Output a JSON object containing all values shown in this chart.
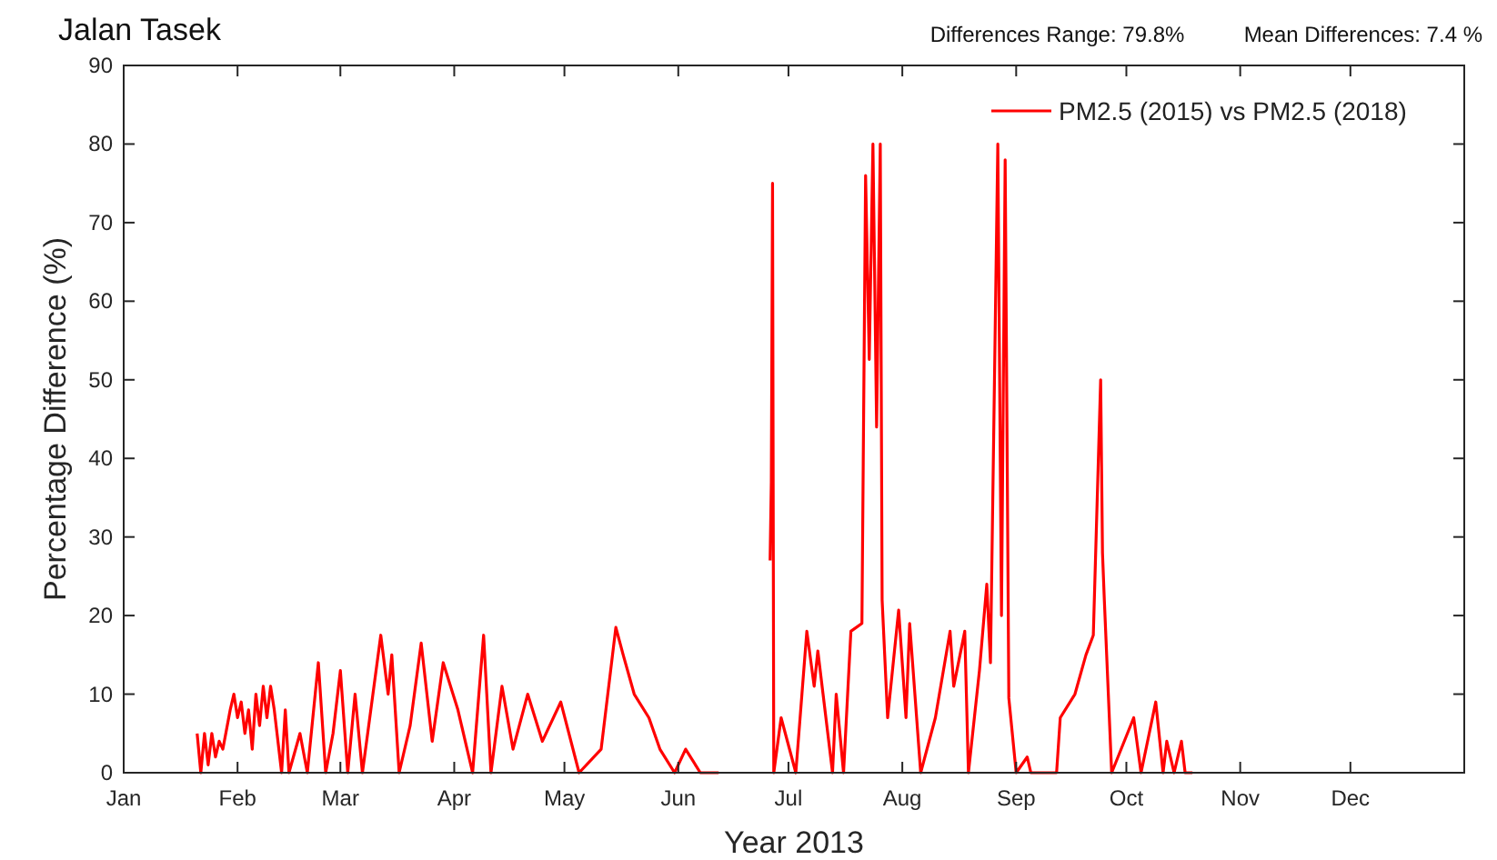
{
  "chart_data": {
    "type": "line",
    "title": "Jalan Tasek",
    "xlabel": "Year 2013",
    "ylabel": "Percentage Difference (%)",
    "annotations": [
      "Differences Range: 79.8%",
      "Mean Differences: 7.4 %"
    ],
    "x": [
      "2013-01-21",
      "2013-01-22",
      "2013-01-23",
      "2013-01-24",
      "2013-01-25",
      "2013-01-26",
      "2013-01-27",
      "2013-01-28",
      "2013-01-30",
      "2013-01-31",
      "2013-02-01",
      "2013-02-02",
      "2013-02-03",
      "2013-02-04",
      "2013-02-05",
      "2013-02-06",
      "2013-02-07",
      "2013-02-08",
      "2013-02-09",
      "2013-02-10",
      "2013-02-11",
      "2013-02-13",
      "2013-02-14",
      "2013-02-15",
      "2013-02-18",
      "2013-02-20",
      "2013-02-23",
      "2013-02-25",
      "2013-02-27",
      "2013-03-01",
      "2013-03-03",
      "2013-03-05",
      "2013-03-07",
      "2013-03-12",
      "2013-03-14",
      "2013-03-15",
      "2013-03-17",
      "2013-03-20",
      "2013-03-23",
      "2013-03-26",
      "2013-03-29",
      "2013-04-02",
      "2013-04-06",
      "2013-04-09",
      "2013-04-11",
      "2013-04-14",
      "2013-04-17",
      "2013-04-21",
      "2013-04-25",
      "2013-04-30",
      "2013-05-05",
      "2013-05-11",
      "2013-05-15",
      "2013-05-17",
      "2013-05-20",
      "2013-05-24",
      "2013-05-27",
      "2013-05-31",
      "2013-06-03",
      "2013-06-07",
      "2013-06-12",
      "2013-06-20",
      "2013-06-26",
      "2013-06-26T08:00",
      "2013-06-26T16:00",
      "2013-06-27",
      "2013-06-29",
      "2013-07-03",
      "2013-07-06",
      "2013-07-08",
      "2013-07-09",
      "2013-07-13",
      "2013-07-14",
      "2013-07-16",
      "2013-07-18",
      "2013-07-21",
      "2013-07-22",
      "2013-07-23",
      "2013-07-24",
      "2013-07-25",
      "2013-07-26",
      "2013-07-26T12:00",
      "2013-07-28",
      "2013-07-31",
      "2013-08-02",
      "2013-08-03",
      "2013-08-06",
      "2013-08-10",
      "2013-08-14",
      "2013-08-15",
      "2013-08-18",
      "2013-08-19",
      "2013-08-22",
      "2013-08-24",
      "2013-08-25",
      "2013-08-27",
      "2013-08-28",
      "2013-08-29",
      "2013-08-30",
      "2013-09-01",
      "2013-09-04",
      "2013-09-05",
      "2013-09-12",
      "2013-09-13",
      "2013-09-17",
      "2013-09-20",
      "2013-09-22",
      "2013-09-24",
      "2013-09-24T12:00",
      "2013-09-25",
      "2013-09-27",
      "2013-10-03",
      "2013-10-05",
      "2013-10-09",
      "2013-10-11",
      "2013-10-12",
      "2013-10-14",
      "2013-10-16",
      "2013-10-17",
      "2013-10-19"
    ],
    "series": [
      {
        "name": "PM2.5 (2015) vs PM2.5 (2018)",
        "color": "#ff0000",
        "values": [
          5,
          0,
          5,
          1,
          5,
          2,
          4,
          3,
          8,
          10,
          7,
          9,
          5,
          8,
          3,
          10,
          6,
          11,
          7,
          11,
          8,
          0,
          8,
          0,
          5,
          0,
          14,
          0,
          5,
          13,
          0,
          10,
          0,
          17.5,
          10,
          15,
          0,
          6,
          16.5,
          4,
          14,
          8,
          0,
          17.5,
          0,
          11,
          3,
          10,
          4,
          9,
          0,
          3,
          18.5,
          15,
          10,
          7,
          3,
          0,
          3,
          0,
          0,
          null,
          27,
          37,
          75,
          0,
          7,
          0,
          18,
          11,
          15.5,
          0,
          10,
          0,
          18,
          19,
          76,
          52.6,
          80,
          44,
          80,
          22,
          7,
          20.7,
          7,
          19,
          0,
          7,
          18,
          11,
          18,
          0,
          13,
          24,
          14,
          80,
          20,
          78,
          9.5,
          0,
          2,
          0,
          0,
          7,
          10,
          15,
          17.5,
          50,
          28,
          22,
          0,
          7,
          0,
          9,
          0,
          4,
          0,
          4,
          0,
          0
        ]
      }
    ],
    "xlim": [
      "2013-01-01",
      "2014-01-01"
    ],
    "xticks": [
      {
        "value": "2013-01-01",
        "label": "Jan"
      },
      {
        "value": "2013-02-01",
        "label": "Feb"
      },
      {
        "value": "2013-03-01",
        "label": "Mar"
      },
      {
        "value": "2013-04-01",
        "label": "Apr"
      },
      {
        "value": "2013-05-01",
        "label": "May"
      },
      {
        "value": "2013-06-01",
        "label": "Jun"
      },
      {
        "value": "2013-07-01",
        "label": "Jul"
      },
      {
        "value": "2013-08-01",
        "label": "Aug"
      },
      {
        "value": "2013-09-01",
        "label": "Sep"
      },
      {
        "value": "2013-10-01",
        "label": "Oct"
      },
      {
        "value": "2013-11-01",
        "label": "Nov"
      },
      {
        "value": "2013-12-01",
        "label": "Dec"
      }
    ],
    "ylim": [
      0,
      90
    ],
    "yticks": [
      0,
      10,
      20,
      30,
      40,
      50,
      60,
      70,
      80,
      90
    ],
    "grid": false,
    "legend": "top right",
    "marker": "none",
    "line_style": "solid"
  }
}
